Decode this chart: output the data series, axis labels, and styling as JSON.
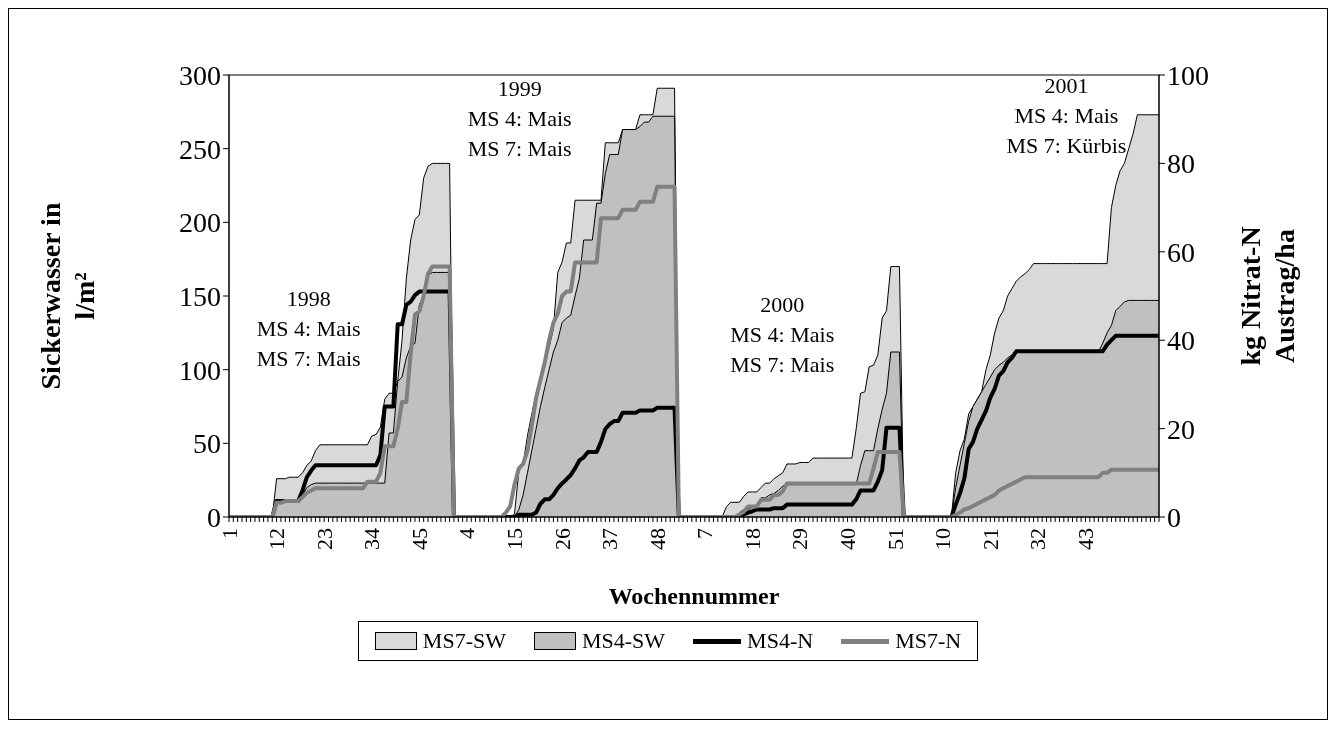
{
  "chart_data": {
    "type": "area",
    "xlabel": "Wochennummer",
    "ylabel": "Sickerwasser in l/m²",
    "y2label": "kg Nitrat-N Austrag/ha",
    "categories": [
      "1",
      null,
      null,
      null,
      null,
      null,
      null,
      null,
      null,
      null,
      null,
      "12",
      null,
      null,
      null,
      null,
      null,
      null,
      null,
      null,
      null,
      null,
      "23",
      null,
      null,
      null,
      null,
      null,
      null,
      null,
      null,
      null,
      null,
      "34",
      null,
      null,
      null,
      null,
      null,
      null,
      null,
      null,
      null,
      null,
      "45",
      null,
      null,
      null,
      null,
      null,
      null,
      null,
      null,
      null,
      null,
      "4",
      null,
      null,
      null,
      null,
      null,
      null,
      null,
      null,
      null,
      null,
      "15",
      null,
      null,
      null,
      null,
      null,
      null,
      null,
      null,
      null,
      null,
      "26",
      null,
      null,
      null,
      null,
      null,
      null,
      null,
      null,
      null,
      null,
      "37",
      null,
      null,
      null,
      null,
      null,
      null,
      null,
      null,
      null,
      null,
      "48",
      null,
      null,
      null,
      null,
      null,
      null,
      null,
      null,
      null,
      null,
      "7",
      null,
      null,
      null,
      null,
      null,
      null,
      null,
      null,
      null,
      null,
      "18",
      null,
      null,
      null,
      null,
      null,
      null,
      null,
      null,
      null,
      null,
      "29",
      null,
      null,
      null,
      null,
      null,
      null,
      null,
      null,
      null,
      null,
      "40",
      null,
      null,
      null,
      null,
      null,
      null,
      null,
      null,
      null,
      null,
      "51",
      null,
      null,
      null,
      null,
      null,
      null,
      null,
      null,
      null,
      null,
      "10",
      null,
      null,
      null,
      null,
      null,
      null,
      null,
      null,
      null,
      null,
      "21",
      null,
      null,
      null,
      null,
      null,
      null,
      null,
      null,
      null,
      null,
      "32",
      null,
      null,
      null,
      null,
      null,
      null,
      null,
      null,
      null,
      null,
      "43",
      null,
      null,
      null,
      null,
      null,
      null,
      null,
      null,
      null,
      null,
      null,
      null,
      null,
      null,
      null,
      null,
      null
    ],
    "ylim": [
      0,
      300
    ],
    "yticks": [
      0,
      50,
      100,
      150,
      200,
      250,
      300
    ],
    "y2lim": [
      0,
      100
    ],
    "y2ticks": [
      0,
      20,
      40,
      60,
      80,
      100
    ],
    "legend": "bottom",
    "annotations": [
      "1998\nMS 4: Mais\nMS 7: Mais",
      "1999\nMS 4: Mais\nMS 7: Mais",
      "2000\nMS 4: Mais\nMS 7: Mais",
      "2001\nMS 4: Mais\nMS 7: Kürbis"
    ],
    "series": [
      {
        "name": "MS7-SW",
        "color": "#d9d9d9",
        "values": [
          0,
          0,
          0,
          0,
          0,
          0,
          0,
          0,
          0,
          0,
          0,
          26,
          26,
          26,
          27,
          27,
          27,
          30,
          35,
          38,
          45,
          49,
          49,
          49,
          49,
          49,
          49,
          49,
          49,
          49,
          49,
          49,
          49,
          55,
          56,
          61,
          80,
          84,
          84,
          92,
          120,
          162,
          188,
          202,
          205,
          230,
          238,
          240,
          240,
          240,
          240,
          240,
          0,
          0,
          0,
          0,
          0,
          0,
          0,
          0,
          0,
          0,
          0,
          0,
          0,
          0,
          2,
          31,
          36,
          55,
          70,
          84,
          93,
          104,
          115,
          128,
          166,
          173,
          186,
          186,
          215,
          215,
          215,
          215,
          215,
          215,
          215,
          254,
          254,
          254,
          254,
          263,
          263,
          263,
          263,
          273,
          273,
          273,
          273,
          291,
          291,
          291,
          291,
          291,
          0,
          0,
          0,
          0,
          0,
          0,
          0,
          0,
          0,
          0,
          0,
          7,
          10,
          10,
          10,
          14,
          17,
          17,
          17,
          20,
          23,
          23,
          26,
          28,
          30,
          36,
          36,
          36,
          37,
          37,
          37,
          40,
          40,
          40,
          40,
          40,
          40,
          40,
          40,
          40,
          40,
          60,
          84,
          85,
          102,
          103,
          110,
          135,
          140,
          170,
          170,
          170,
          0,
          0,
          0,
          0,
          0,
          0,
          0,
          0,
          0,
          0,
          0,
          0,
          30,
          45,
          53,
          70,
          75,
          80,
          85,
          100,
          110,
          125,
          135,
          140,
          150,
          155,
          160,
          163,
          165,
          168,
          172,
          172,
          172,
          172,
          172,
          172,
          172,
          172,
          172,
          172,
          172,
          172,
          172,
          172,
          172,
          172,
          172,
          172,
          210,
          225,
          235,
          240,
          250,
          260,
          273,
          273,
          273,
          273,
          273,
          273
        ]
      },
      {
        "name": "MS4-SW",
        "color": "#c0c0c0",
        "values": [
          0,
          0,
          0,
          0,
          0,
          0,
          0,
          0,
          0,
          0,
          0,
          11,
          11,
          11,
          11,
          11,
          11,
          15,
          20,
          22,
          23,
          23,
          23,
          23,
          23,
          23,
          23,
          23,
          23,
          23,
          23,
          23,
          23,
          23,
          23,
          23,
          23,
          57,
          57,
          92,
          95,
          108,
          116,
          118,
          144,
          150,
          164,
          166,
          166,
          166,
          166,
          166,
          0,
          0,
          0,
          0,
          0,
          0,
          0,
          0,
          0,
          0,
          0,
          0,
          0,
          0,
          0,
          5,
          15,
          30,
          45,
          60,
          75,
          88,
          100,
          112,
          120,
          132,
          135,
          137,
          150,
          162,
          188,
          188,
          188,
          213,
          213,
          233,
          246,
          246,
          246,
          263,
          263,
          263,
          263,
          265,
          268,
          268,
          272,
          272,
          272,
          272,
          272,
          272,
          0,
          0,
          0,
          0,
          0,
          0,
          0,
          0,
          0,
          0,
          0,
          0,
          0,
          0,
          3,
          5,
          5,
          7,
          7,
          13,
          13,
          15,
          16,
          18,
          21,
          22,
          22,
          22,
          22,
          22,
          22,
          22,
          22,
          22,
          22,
          22,
          22,
          22,
          22,
          22,
          22,
          22,
          35,
          45,
          45,
          45,
          60,
          73,
          84,
          112,
          112,
          112,
          0,
          0,
          0,
          0,
          0,
          0,
          0,
          0,
          0,
          0,
          0,
          0,
          20,
          35,
          50,
          65,
          75,
          80,
          85,
          90,
          95,
          100,
          103,
          105,
          108,
          110,
          112,
          112,
          112,
          112,
          112,
          112,
          112,
          112,
          112,
          112,
          112,
          112,
          112,
          112,
          112,
          112,
          112,
          112,
          112,
          112,
          118,
          125,
          130,
          140,
          143,
          146,
          147,
          147,
          147,
          147,
          147,
          147,
          147,
          147
        ]
      },
      {
        "name": "MS4-N",
        "type": "line",
        "axis": "y2",
        "color": "#000000",
        "values": [
          0,
          0,
          0,
          0,
          0,
          0,
          0,
          0,
          0,
          0,
          0,
          3.6,
          3.6,
          3.6,
          3.6,
          3.6,
          3.6,
          6,
          9,
          10.5,
          11.7,
          11.7,
          11.7,
          11.7,
          11.7,
          11.7,
          11.7,
          11.7,
          11.7,
          11.7,
          11.7,
          11.7,
          11.7,
          11.7,
          11.7,
          14,
          25,
          25,
          25,
          43.6,
          43.6,
          48,
          48.7,
          50.2,
          51,
          51,
          51,
          51,
          51,
          51,
          51,
          51,
          0,
          0,
          0,
          0,
          0,
          0,
          0,
          0,
          0,
          0,
          0,
          0,
          0,
          0,
          0,
          0.5,
          0.5,
          0.5,
          0.5,
          1,
          3,
          4,
          4,
          5,
          6.5,
          7.6,
          8.5,
          9.5,
          11,
          12.8,
          13.5,
          14.7,
          14.7,
          14.7,
          17,
          19.9,
          21,
          21.7,
          21.7,
          23.6,
          23.6,
          23.6,
          23.6,
          24.1,
          24.1,
          24.1,
          24.1,
          24.7,
          24.7,
          24.7,
          24.7,
          24.7,
          0,
          0,
          0,
          0,
          0,
          0,
          0,
          0,
          0,
          0,
          0,
          0,
          0,
          0,
          0,
          0.6,
          1,
          1.3,
          1.7,
          1.7,
          1.7,
          1.7,
          2,
          2,
          2,
          2.8,
          2.8,
          2.8,
          2.8,
          2.8,
          2.8,
          2.8,
          2.8,
          2.8,
          2.8,
          2.8,
          2.8,
          2.8,
          2.8,
          2.8,
          2.8,
          4,
          6,
          6,
          6,
          6,
          8,
          10.6,
          20.2,
          20.2,
          20.2,
          20.2,
          0,
          0,
          0,
          0,
          0,
          0,
          0,
          0,
          0,
          0,
          0,
          0,
          2.8,
          5.4,
          8.7,
          15.4,
          17,
          20,
          22,
          24,
          27,
          29,
          32,
          33,
          35,
          36,
          37.5,
          37.5,
          37.5,
          37.5,
          37.5,
          37.5,
          37.5,
          37.5,
          37.5,
          37.5,
          37.5,
          37.5,
          37.5,
          37.5,
          37.5,
          37.5,
          37.5,
          37.5,
          37.5,
          37.5,
          37.5,
          39,
          40,
          41,
          41,
          41,
          41,
          41,
          41,
          41,
          41,
          41,
          41,
          41
        ]
      },
      {
        "name": "MS7-N",
        "type": "line",
        "axis": "y2",
        "color": "#808080",
        "values": [
          0,
          0,
          0,
          0,
          0,
          0,
          0,
          0,
          0,
          0,
          0,
          3.2,
          3.2,
          3.6,
          3.6,
          3.6,
          3.6,
          4.5,
          5.5,
          6,
          6.5,
          6.5,
          6.5,
          6.5,
          6.5,
          6.5,
          6.5,
          6.5,
          6.5,
          6.5,
          6.5,
          6.5,
          8,
          8,
          8,
          10,
          16,
          16,
          16,
          20,
          26,
          26,
          37,
          45.8,
          46.5,
          50,
          55,
          56.7,
          56.7,
          56.7,
          56.7,
          56.7,
          0,
          0,
          0,
          0,
          0,
          0,
          0,
          0,
          0,
          0,
          0,
          0,
          1,
          2.4,
          7.3,
          11,
          12,
          15,
          20.6,
          27,
          31,
          35,
          40,
          44,
          46,
          50,
          51,
          51,
          57.6,
          57.6,
          57.6,
          57.6,
          57.6,
          57.6,
          67.6,
          67.6,
          67.6,
          67.6,
          67.6,
          69.5,
          69.5,
          69.5,
          69.5,
          71.3,
          71.3,
          71.3,
          71.3,
          74.7,
          74.7,
          74.7,
          74.7,
          74.7,
          0,
          0,
          0,
          0,
          0,
          0,
          0,
          0,
          0,
          0,
          0,
          0,
          0,
          0,
          0.6,
          1.2,
          2.4,
          2.4,
          2.4,
          3.9,
          3.9,
          3.9,
          5,
          5,
          5.8,
          7.6,
          7.6,
          7.6,
          7.6,
          7.6,
          7.6,
          7.6,
          7.6,
          7.6,
          7.6,
          7.6,
          7.6,
          7.6,
          7.6,
          7.6,
          7.6,
          7.6,
          7.6,
          7.6,
          7.6,
          11,
          14.7,
          14.7,
          14.7,
          14.7,
          14.7,
          14.7,
          0,
          0,
          0,
          0,
          0,
          0,
          0,
          0,
          0,
          0,
          0,
          0,
          0.5,
          1,
          1.7,
          2,
          2.5,
          3,
          3.5,
          4,
          4.5,
          5,
          6,
          6.5,
          7,
          7.5,
          8,
          8.5,
          9,
          9,
          9,
          9,
          9,
          9,
          9,
          9,
          9,
          9,
          9,
          9,
          9,
          9,
          9,
          9,
          9,
          9,
          10,
          10,
          10.7,
          10.7,
          10.7,
          10.7,
          10.7,
          10.7,
          10.7,
          10.7,
          10.7,
          10.7,
          10.7,
          10.7
        ]
      }
    ]
  }
}
